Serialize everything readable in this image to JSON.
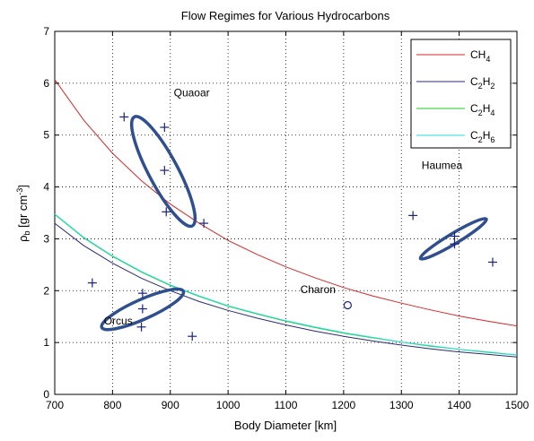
{
  "chart_data": {
    "type": "line",
    "title": "Flow Regimes for Various Hydrocarbons",
    "xlabel": "Body Diameter [km]",
    "ylabel": "ρ",
    "ylabel_sub": "b",
    "ylabel_rest": " [gr cm",
    "ylabel_sup": "-3",
    "ylabel_end": "]",
    "xlim": [
      700,
      1500
    ],
    "ylim": [
      0,
      7
    ],
    "xticks": [
      700,
      800,
      900,
      1000,
      1100,
      1200,
      1300,
      1400,
      1500
    ],
    "yticks": [
      0,
      1,
      2,
      3,
      4,
      5,
      6,
      7
    ],
    "grid": true,
    "legend_position": "top-right",
    "series": [
      {
        "name": "CH4",
        "label_base": "CH",
        "label_sub": "4",
        "color": "#d62728",
        "x": [
          700,
          750,
          800,
          850,
          900,
          950,
          1000,
          1050,
          1100,
          1150,
          1200,
          1250,
          1300,
          1350,
          1400,
          1450,
          1500
        ],
        "y": [
          6.07,
          5.29,
          4.65,
          4.12,
          3.67,
          3.3,
          2.97,
          2.7,
          2.46,
          2.25,
          2.06,
          1.9,
          1.76,
          1.63,
          1.51,
          1.41,
          1.32
        ]
      },
      {
        "name": "C2H2",
        "label_base": "C",
        "label_mid_sub": "2",
        "label_mid": "H",
        "label_sub": "2",
        "color": "#2a2a7a",
        "x": [
          700,
          750,
          800,
          850,
          900,
          950,
          1000,
          1050,
          1100,
          1150,
          1200,
          1250,
          1300,
          1350,
          1400,
          1450,
          1500
        ],
        "y": [
          3.3,
          2.87,
          2.53,
          2.24,
          2.0,
          1.79,
          1.62,
          1.47,
          1.34,
          1.22,
          1.12,
          1.03,
          0.95,
          0.88,
          0.82,
          0.77,
          0.72
        ]
      },
      {
        "name": "C2H4",
        "label_base": "C",
        "label_mid_sub": "2",
        "label_mid": "H",
        "label_sub": "4",
        "color": "#22cc22",
        "x": [
          700,
          750,
          800,
          850,
          900,
          950,
          1000,
          1050,
          1100,
          1150,
          1200,
          1250,
          1300,
          1350,
          1400,
          1450,
          1500
        ],
        "y": [
          3.47,
          3.02,
          2.66,
          2.36,
          2.1,
          1.89,
          1.7,
          1.55,
          1.41,
          1.29,
          1.18,
          1.09,
          1.01,
          0.93,
          0.87,
          0.81,
          0.76
        ]
      },
      {
        "name": "C2H6",
        "label_base": "C",
        "label_mid_sub": "2",
        "label_mid": "H",
        "label_sub": "6",
        "color": "#22dddd",
        "x": [
          700,
          750,
          800,
          850,
          900,
          950,
          1000,
          1050,
          1100,
          1150,
          1200,
          1250,
          1300,
          1350,
          1400,
          1450,
          1500
        ],
        "y": [
          3.48,
          3.03,
          2.67,
          2.37,
          2.11,
          1.9,
          1.71,
          1.56,
          1.42,
          1.3,
          1.19,
          1.1,
          1.01,
          0.94,
          0.87,
          0.82,
          0.76
        ]
      }
    ],
    "bodies": [
      {
        "name": "Quaoar",
        "points": [
          [
            820,
            5.35
          ],
          [
            890,
            5.15
          ],
          [
            890,
            4.32
          ],
          [
            893,
            3.52
          ],
          [
            958,
            3.3
          ]
        ],
        "ellipse": {
          "cx": 888,
          "cy": 4.3,
          "rx": 1.19,
          "ry": 0.28,
          "angle_deg": -62
        },
        "label": "Quaoar",
        "label_pos": [
          906,
          5.75
        ]
      },
      {
        "name": "Haumea",
        "points": [
          [
            1320,
            3.45
          ],
          [
            1392,
            3.05
          ],
          [
            1392,
            2.9
          ],
          [
            1458,
            2.55
          ]
        ],
        "ellipse": {
          "cx": 1390,
          "cy": 3.0,
          "rx": 0.74,
          "ry": 0.1,
          "angle_deg": 31
        },
        "label": "Haumea",
        "label_pos": [
          1335,
          4.35
        ]
      },
      {
        "name": "Orcus",
        "points": [
          [
            765,
            2.15
          ],
          [
            852,
            1.95
          ],
          [
            852,
            1.65
          ],
          [
            850,
            1.3
          ],
          [
            938,
            1.12
          ]
        ],
        "ellipse": {
          "cx": 852,
          "cy": 1.64,
          "rx": 0.86,
          "ry": 0.19,
          "angle_deg": 24
        },
        "label": "Orcus",
        "label_pos": [
          785,
          1.35
        ]
      },
      {
        "name": "Charon",
        "points": [],
        "circle_point": [
          1207,
          1.72
        ],
        "label": "Charon",
        "label_pos": [
          1125,
          1.95
        ]
      }
    ]
  }
}
